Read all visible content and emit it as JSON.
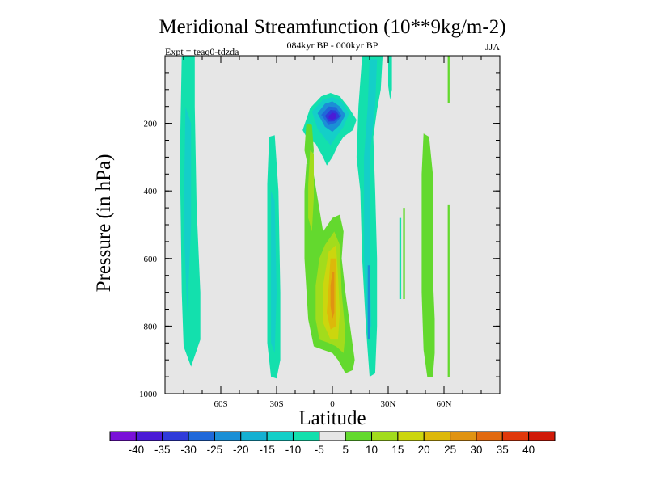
{
  "chart_data": {
    "type": "heatmap",
    "title": "Meridional Streamfunction (10**9kg/m-2)",
    "subtitle": "084kyr BP - 000kyr BP",
    "experiment_label": "Expt = teaq0-tdzda",
    "season": "JJA",
    "xlabel": "Latitude",
    "ylabel": "Pressure (in hPa)",
    "xlim": [
      -90,
      90
    ],
    "ylim": [
      1000,
      0
    ],
    "x_ticks": [
      {
        "value": -60,
        "label": "60S"
      },
      {
        "value": -30,
        "label": "30S"
      },
      {
        "value": 0,
        "label": "0"
      },
      {
        "value": 30,
        "label": "30N"
      },
      {
        "value": 60,
        "label": "60N"
      }
    ],
    "y_ticks": [
      {
        "value": 200,
        "label": "200"
      },
      {
        "value": 400,
        "label": "400"
      },
      {
        "value": 600,
        "label": "600"
      },
      {
        "value": 800,
        "label": "800"
      },
      {
        "value": 1000,
        "label": "1000"
      }
    ],
    "background_color": "#e6e6e6",
    "colorbar": {
      "levels": [
        -40,
        -35,
        -30,
        -25,
        -20,
        -15,
        -10,
        -5,
        5,
        10,
        15,
        20,
        25,
        30,
        35,
        40
      ],
      "colors": [
        "#7a10d8",
        "#4b1bd6",
        "#2f3bd9",
        "#1f68d9",
        "#1b8fd6",
        "#14b0d2",
        "#14cfc8",
        "#13e0ad",
        "#e6e6e6",
        "#63d92e",
        "#a2dc1c",
        "#ccd60e",
        "#ddb80a",
        "#e09312",
        "#e26a10",
        "#e0380b",
        "#d01a08"
      ]
    },
    "regions": [
      {
        "name": "sh-polar-cell",
        "value": -7,
        "color": "#13e0ad",
        "points": [
          [
            -81,
            0
          ],
          [
            -74,
            0
          ],
          [
            -74,
            150
          ],
          [
            -73,
            450
          ],
          [
            -71,
            700
          ],
          [
            -71,
            840
          ],
          [
            -76,
            920
          ],
          [
            -80,
            860
          ],
          [
            -81,
            700
          ],
          [
            -82,
            300
          ]
        ]
      },
      {
        "name": "sh-polar-cell-core",
        "value": -12,
        "color": "#14cfc8",
        "points": [
          [
            -79,
            150
          ],
          [
            -76,
            200
          ],
          [
            -76,
            500
          ],
          [
            -78,
            760
          ],
          [
            -80,
            500
          ]
        ]
      },
      {
        "name": "sh-midlat-cell",
        "value": -7,
        "color": "#13e0ad",
        "points": [
          [
            -34,
            240
          ],
          [
            -31,
            235
          ],
          [
            -29,
            400
          ],
          [
            -28,
            700
          ],
          [
            -28,
            900
          ],
          [
            -30,
            955
          ],
          [
            -33,
            950
          ],
          [
            -35,
            850
          ],
          [
            -35,
            600
          ],
          [
            -35,
            380
          ]
        ]
      },
      {
        "name": "sh-midlat-cell-core",
        "value": -12,
        "color": "#14cfc8",
        "points": [
          [
            -33,
            400
          ],
          [
            -31,
            430
          ],
          [
            -30,
            700
          ],
          [
            -31,
            880
          ],
          [
            -33,
            850
          ],
          [
            -33,
            600
          ]
        ]
      },
      {
        "name": "tropical-upper-cell",
        "value": -7,
        "color": "#13e0ad",
        "points": [
          [
            -16,
            220
          ],
          [
            -12,
            155
          ],
          [
            -6,
            120
          ],
          [
            -1,
            110
          ],
          [
            4,
            120
          ],
          [
            9,
            155
          ],
          [
            13,
            190
          ],
          [
            11,
            220
          ],
          [
            6,
            240
          ],
          [
            3,
            265
          ],
          [
            0,
            300
          ],
          [
            -3,
            325
          ],
          [
            -5,
            300
          ],
          [
            -9,
            260
          ],
          [
            -14,
            240
          ]
        ]
      },
      {
        "name": "tropical-upper-cell-m15",
        "value": -12,
        "color": "#14cfc8",
        "points": [
          [
            -11,
            165
          ],
          [
            -5,
            130
          ],
          [
            0,
            122
          ],
          [
            5,
            135
          ],
          [
            9,
            170
          ],
          [
            6,
            210
          ],
          [
            2,
            240
          ],
          [
            -1,
            265
          ],
          [
            -4,
            245
          ],
          [
            -8,
            215
          ]
        ]
      },
      {
        "name": "tropical-upper-cell-m20",
        "value": -17,
        "color": "#1b8fd6",
        "points": [
          [
            -8,
            170
          ],
          [
            -4,
            142
          ],
          [
            0,
            135
          ],
          [
            4,
            150
          ],
          [
            7,
            175
          ],
          [
            4,
            205
          ],
          [
            0,
            225
          ],
          [
            -4,
            210
          ]
        ]
      },
      {
        "name": "tropical-upper-cell-m25",
        "value": -22,
        "color": "#1f68d9",
        "points": [
          [
            -6,
            175
          ],
          [
            -2,
            150
          ],
          [
            2,
            152
          ],
          [
            5,
            178
          ],
          [
            2,
            198
          ],
          [
            -2,
            205
          ]
        ]
      },
      {
        "name": "tropical-upper-cell-m30",
        "value": -27,
        "color": "#2f3bd9",
        "points": [
          [
            -4,
            178
          ],
          [
            -1,
            160
          ],
          [
            2,
            162
          ],
          [
            4,
            180
          ],
          [
            1,
            194
          ],
          [
            -2,
            195
          ]
        ]
      },
      {
        "name": "tropical-upper-cell-m35",
        "value": -33,
        "color": "#4b1bd6",
        "points": [
          [
            -2,
            178
          ],
          [
            0,
            168
          ],
          [
            2,
            172
          ],
          [
            2,
            184
          ],
          [
            0,
            190
          ],
          [
            -2,
            186
          ]
        ]
      },
      {
        "name": "nh-tropical-column",
        "value": -7,
        "color": "#13e0ad",
        "points": [
          [
            16,
            0
          ],
          [
            27,
            0
          ],
          [
            26,
            100
          ],
          [
            24,
            160
          ],
          [
            22,
            240
          ],
          [
            23,
            400
          ],
          [
            24,
            600
          ],
          [
            24,
            800
          ],
          [
            23,
            940
          ],
          [
            20,
            950
          ],
          [
            18,
            800
          ],
          [
            16,
            600
          ],
          [
            15,
            400
          ],
          [
            13,
            300
          ],
          [
            14,
            150
          ]
        ]
      },
      {
        "name": "nh-tropical-column-core",
        "value": -12,
        "color": "#14cfc8",
        "points": [
          [
            20,
            10
          ],
          [
            24,
            10
          ],
          [
            23,
            150
          ],
          [
            20,
            300
          ],
          [
            20,
            600
          ],
          [
            21,
            800
          ],
          [
            19,
            820
          ],
          [
            17,
            600
          ],
          [
            17,
            300
          ],
          [
            19,
            150
          ]
        ]
      },
      {
        "name": "nh-tropical-column-core2",
        "value": -15,
        "color": "#1b8fd6",
        "points": [
          [
            19,
            620
          ],
          [
            20,
            620
          ],
          [
            20,
            840
          ],
          [
            19,
            840
          ]
        ]
      },
      {
        "name": "nh-upper-strip",
        "value": -7,
        "color": "#13e0ad",
        "points": [
          [
            30,
            0
          ],
          [
            32,
            0
          ],
          [
            32,
            100
          ],
          [
            31,
            130
          ],
          [
            30,
            90
          ]
        ]
      },
      {
        "name": "nh-thin-streak",
        "value": -7,
        "color": "#13e0ad",
        "points": [
          [
            36,
            480
          ],
          [
            37,
            480
          ],
          [
            37,
            720
          ],
          [
            36,
            720
          ]
        ]
      },
      {
        "name": "nh-upper-thin",
        "value": 7,
        "color": "#63d92e",
        "points": [
          [
            62,
            0
          ],
          [
            63,
            0
          ],
          [
            63,
            140
          ],
          [
            62,
            140
          ]
        ]
      },
      {
        "name": "equatorial-up-cell",
        "value": 7,
        "color": "#63d92e",
        "points": [
          [
            -14,
            320
          ],
          [
            -11,
            320
          ],
          [
            -8,
            420
          ],
          [
            -5,
            520
          ],
          [
            0,
            480
          ],
          [
            4,
            470
          ],
          [
            6,
            520
          ],
          [
            5,
            600
          ],
          [
            7,
            700
          ],
          [
            9,
            780
          ],
          [
            12,
            900
          ],
          [
            11,
            930
          ],
          [
            7,
            940
          ],
          [
            3,
            900
          ],
          [
            0,
            880
          ],
          [
            -5,
            870
          ],
          [
            -10,
            860
          ],
          [
            -13,
            780
          ],
          [
            -15,
            600
          ],
          [
            -15,
            400
          ]
        ]
      },
      {
        "name": "equatorial-up-cell-left",
        "value": 7,
        "color": "#63d92e",
        "points": [
          [
            -14,
            200
          ],
          [
            -11,
            205
          ],
          [
            -10,
            280
          ],
          [
            -11,
            330
          ],
          [
            -13,
            330
          ],
          [
            -15,
            280
          ]
        ]
      },
      {
        "name": "equatorial-up-cell-10",
        "value": 12,
        "color": "#a2dc1c",
        "points": [
          [
            -12,
            280
          ],
          [
            -10,
            290
          ],
          [
            -10,
            420
          ],
          [
            -11,
            520
          ],
          [
            -13,
            480
          ],
          [
            -13,
            380
          ]
        ]
      },
      {
        "name": "equatorial-up-cell-10b",
        "value": 12,
        "color": "#a2dc1c",
        "points": [
          [
            -4,
            560
          ],
          [
            1,
            520
          ],
          [
            4,
            560
          ],
          [
            5,
            700
          ],
          [
            7,
            820
          ],
          [
            6,
            880
          ],
          [
            2,
            860
          ],
          [
            -2,
            850
          ],
          [
            -7,
            840
          ],
          [
            -9,
            780
          ],
          [
            -9,
            680
          ],
          [
            -7,
            600
          ]
        ]
      },
      {
        "name": "equatorial-up-cell-15",
        "value": 17,
        "color": "#ccd60e",
        "points": [
          [
            -2,
            580
          ],
          [
            2,
            560
          ],
          [
            3,
            650
          ],
          [
            4,
            760
          ],
          [
            3,
            840
          ],
          [
            -1,
            840
          ],
          [
            -5,
            790
          ],
          [
            -5,
            680
          ]
        ]
      },
      {
        "name": "equatorial-up-cell-20",
        "value": 22,
        "color": "#ddb80a",
        "points": [
          [
            -1,
            600
          ],
          [
            2,
            600
          ],
          [
            2,
            700
          ],
          [
            2,
            800
          ],
          [
            -1,
            810
          ],
          [
            -3,
            760
          ],
          [
            -2,
            680
          ]
        ]
      },
      {
        "name": "equatorial-up-cell-25",
        "value": 27,
        "color": "#e09312",
        "points": [
          [
            0,
            640
          ],
          [
            1,
            640
          ],
          [
            1,
            760
          ],
          [
            0,
            780
          ],
          [
            -1,
            740
          ],
          [
            -1,
            680
          ]
        ]
      },
      {
        "name": "nh-midlat-cell",
        "value": 7,
        "color": "#63d92e",
        "points": [
          [
            49,
            230
          ],
          [
            52,
            240
          ],
          [
            54,
            350
          ],
          [
            54,
            500
          ],
          [
            54,
            650
          ],
          [
            55,
            780
          ],
          [
            55,
            880
          ],
          [
            54,
            950
          ],
          [
            51,
            950
          ],
          [
            49,
            870
          ],
          [
            48,
            700
          ],
          [
            48,
            500
          ],
          [
            48,
            350
          ]
        ]
      },
      {
        "name": "nh-midlat-thin",
        "value": 7,
        "color": "#63d92e",
        "points": [
          [
            62,
            440
          ],
          [
            63,
            440
          ],
          [
            63,
            950
          ],
          [
            62,
            950
          ]
        ]
      },
      {
        "name": "nh-left-green",
        "value": 7,
        "color": "#63d92e",
        "points": [
          [
            38,
            450
          ],
          [
            39,
            450
          ],
          [
            39,
            720
          ],
          [
            38,
            720
          ]
        ]
      }
    ]
  }
}
